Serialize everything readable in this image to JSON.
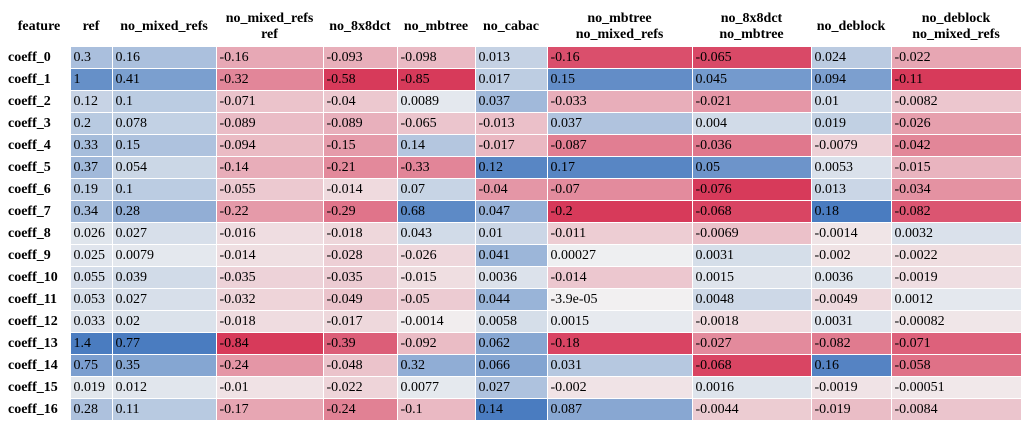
{
  "chart_data": {
    "type": "heatmap",
    "title": "",
    "corner_label": "feature",
    "columns": [
      "ref",
      "no_mixed_refs",
      "no_mixed_refs\nref",
      "no_8x8dct",
      "no_mbtree",
      "no_cabac",
      "no_mbtree\nno_mixed_refs",
      "no_8x8dct\nno_mbtree",
      "no_deblock",
      "no_deblock\nno_mixed_refs"
    ],
    "rows": [
      "coeff_0",
      "coeff_1",
      "coeff_2",
      "coeff_3",
      "coeff_4",
      "coeff_5",
      "coeff_6",
      "coeff_7",
      "coeff_8",
      "coeff_9",
      "coeff_10",
      "coeff_11",
      "coeff_12",
      "coeff_13",
      "coeff_14",
      "coeff_15",
      "coeff_16"
    ],
    "cells": [
      [
        "0.3",
        "0.16",
        "-0.16",
        "-0.093",
        "-0.098",
        "0.013",
        "-0.16",
        "-0.065",
        "0.024",
        "-0.022"
      ],
      [
        "1",
        "0.41",
        "-0.32",
        "-0.58",
        "-0.85",
        "0.017",
        "0.15",
        "0.045",
        "0.094",
        "-0.11"
      ],
      [
        "0.12",
        "0.1",
        "-0.071",
        "-0.04",
        "0.0089",
        "0.037",
        "-0.033",
        "-0.021",
        "0.01",
        "-0.0082"
      ],
      [
        "0.2",
        "0.078",
        "-0.089",
        "-0.089",
        "-0.065",
        "-0.013",
        "0.037",
        "0.004",
        "0.019",
        "-0.026"
      ],
      [
        "0.33",
        "0.15",
        "-0.094",
        "-0.15",
        "0.14",
        "-0.017",
        "-0.087",
        "-0.036",
        "-0.0079",
        "-0.042"
      ],
      [
        "0.37",
        "0.054",
        "-0.14",
        "-0.21",
        "-0.33",
        "0.12",
        "0.17",
        "0.05",
        "0.0053",
        "-0.015"
      ],
      [
        "0.19",
        "0.1",
        "-0.055",
        "-0.014",
        "0.07",
        "-0.04",
        "-0.07",
        "-0.076",
        "0.013",
        "-0.034"
      ],
      [
        "0.34",
        "0.28",
        "-0.22",
        "-0.29",
        "0.68",
        "0.047",
        "-0.2",
        "-0.068",
        "0.18",
        "-0.082"
      ],
      [
        "0.026",
        "0.027",
        "-0.016",
        "-0.018",
        "0.043",
        "0.01",
        "-0.011",
        "-0.0069",
        "-0.0014",
        "0.0032"
      ],
      [
        "0.025",
        "0.0079",
        "-0.014",
        "-0.028",
        "-0.026",
        "0.041",
        "0.00027",
        "0.0031",
        "-0.002",
        "-0.0022"
      ],
      [
        "0.055",
        "0.039",
        "-0.035",
        "-0.035",
        "-0.015",
        "0.0036",
        "-0.014",
        "0.0015",
        "0.0036",
        "-0.0019"
      ],
      [
        "0.053",
        "0.027",
        "-0.032",
        "-0.049",
        "-0.05",
        "0.044",
        "-3.9e-05",
        "0.0048",
        "-0.0049",
        "0.0012"
      ],
      [
        "0.033",
        "0.02",
        "-0.018",
        "-0.017",
        "-0.0014",
        "0.0058",
        "0.0015",
        "-0.0018",
        "0.0031",
        "-0.00082"
      ],
      [
        "1.4",
        "0.77",
        "-0.84",
        "-0.39",
        "-0.092",
        "0.062",
        "-0.18",
        "-0.027",
        "-0.082",
        "-0.071"
      ],
      [
        "0.75",
        "0.35",
        "-0.24",
        "-0.048",
        "0.32",
        "0.066",
        "0.031",
        "-0.068",
        "0.16",
        "-0.058"
      ],
      [
        "0.019",
        "0.012",
        "-0.01",
        "-0.022",
        "0.0077",
        "0.027",
        "-0.002",
        "0.0016",
        "-0.0019",
        "-0.00051"
      ],
      [
        "0.28",
        "0.11",
        "-0.17",
        "-0.24",
        "-0.1",
        "0.14",
        "0.087",
        "-0.0044",
        "-0.019",
        "-0.0084"
      ]
    ],
    "color_scale": {
      "negative": "#d73a5a",
      "neutral": "#f2f2f2",
      "positive": "#4a7cc0",
      "normalization": "per-column"
    },
    "legend": "none",
    "grid": false
  }
}
